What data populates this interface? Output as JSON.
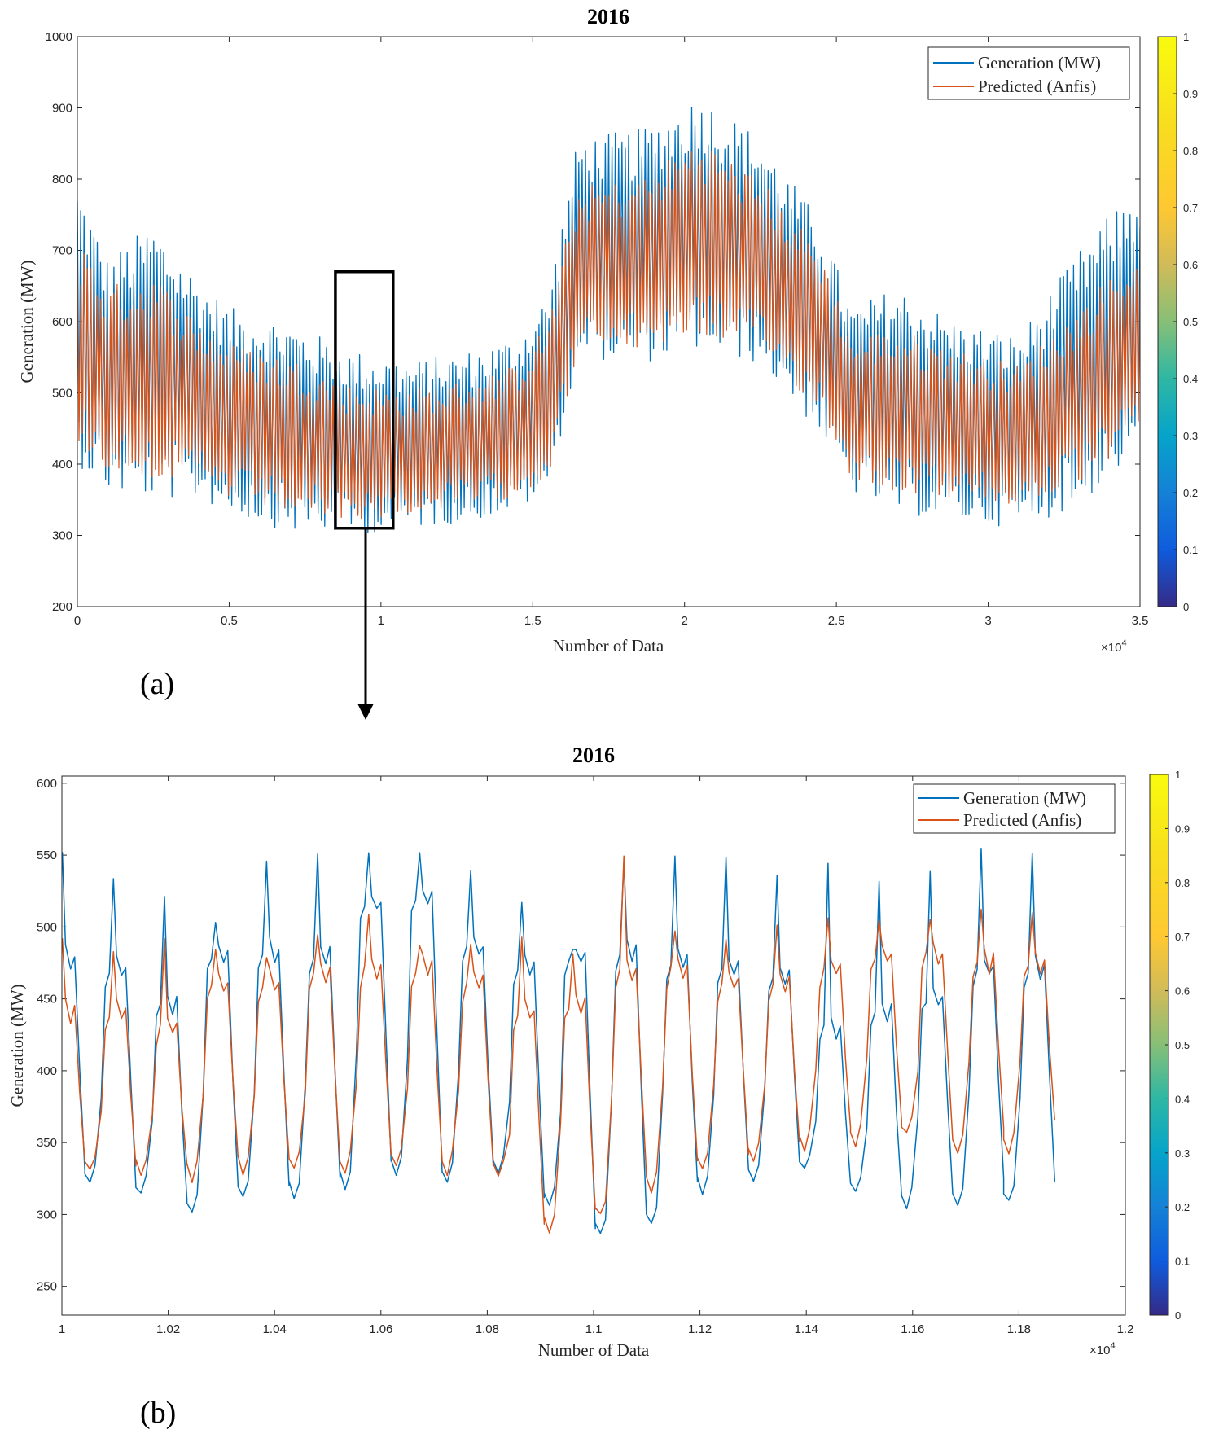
{
  "chart_data": [
    {
      "id": "a",
      "type": "line",
      "title": "2016",
      "panel_label": "(a)",
      "xlabel": "Number of Data",
      "ylabel": "Generation (MW)",
      "x_exponent": "×10",
      "x_exponent_power": "4",
      "xlim": [
        0,
        3.5
      ],
      "ylim": [
        200,
        1000
      ],
      "xticks": [
        0,
        0.5,
        1,
        1.5,
        2,
        2.5,
        3,
        3.5
      ],
      "xtick_labels": [
        "0",
        "0.5",
        "1",
        "1.5",
        "2",
        "2.5",
        "3",
        "3.5"
      ],
      "yticks": [
        200,
        300,
        400,
        500,
        600,
        700,
        800,
        900,
        1000
      ],
      "ytick_labels": [
        "200",
        "300",
        "400",
        "500",
        "600",
        "700",
        "800",
        "900",
        "1000"
      ],
      "zoom_box": {
        "x_range": [
          0.85,
          1.04
        ],
        "y_range": [
          310,
          670
        ]
      },
      "envelope_x": [
        0,
        0.1,
        0.25,
        0.4,
        0.5,
        0.7,
        0.9,
        1.1,
        1.3,
        1.45,
        1.55,
        1.65,
        1.85,
        2.05,
        2.25,
        2.45,
        2.55,
        2.7,
        2.9,
        3.1,
        3.3,
        3.5
      ],
      "series": [
        {
          "name": "Generation (MW)",
          "color": "#0072BD",
          "upper": [
            800,
            690,
            740,
            660,
            620,
            600,
            560,
            545,
            560,
            580,
            640,
            860,
            870,
            920,
            860,
            740,
            620,
            650,
            600,
            580,
            700,
            800
          ],
          "lower": [
            400,
            360,
            350,
            350,
            330,
            305,
            300,
            310,
            320,
            335,
            360,
            550,
            540,
            560,
            540,
            440,
            360,
            330,
            320,
            310,
            340,
            420
          ]
        },
        {
          "name": "Predicted (Anfis)",
          "color": "#D95319",
          "upper": [
            720,
            650,
            670,
            600,
            570,
            550,
            510,
            505,
            520,
            540,
            600,
            790,
            800,
            860,
            800,
            700,
            580,
            590,
            560,
            540,
            620,
            710
          ],
          "lower": [
            430,
            390,
            380,
            370,
            350,
            330,
            320,
            330,
            340,
            355,
            380,
            560,
            560,
            580,
            560,
            470,
            380,
            360,
            350,
            340,
            370,
            440
          ]
        }
      ],
      "colorbar": {
        "min": 0,
        "max": 1,
        "ticks": [
          "0",
          "0.1",
          "0.2",
          "0.3",
          "0.4",
          "0.5",
          "0.6",
          "0.7",
          "0.8",
          "0.9",
          "1"
        ]
      }
    },
    {
      "id": "b",
      "type": "line",
      "title": "2016",
      "panel_label": "(b)",
      "xlabel": "Number of Data",
      "ylabel": "Generation (MW)",
      "x_exponent": "×10",
      "x_exponent_power": "4",
      "xlim": [
        1.0,
        1.2
      ],
      "ylim": [
        230,
        605
      ],
      "xticks": [
        1,
        1.02,
        1.04,
        1.06,
        1.08,
        1.1,
        1.12,
        1.14,
        1.16,
        1.18,
        1.2
      ],
      "xtick_labels": [
        "1",
        "1.02",
        "1.04",
        "1.06",
        "1.08",
        "1.1",
        "1.12",
        "1.14",
        "1.16",
        "1.18",
        "1.2"
      ],
      "yticks": [
        250,
        300,
        350,
        400,
        450,
        500,
        550,
        600
      ],
      "ytick_labels": [
        "250",
        "300",
        "350",
        "400",
        "450",
        "500",
        "550",
        "600"
      ],
      "cycle_period": 0.0096,
      "cycle_start": 1.0,
      "series": [
        {
          "name": "Generation (MW)",
          "color": "#0072BD",
          "peaks": [
            553,
            531,
            520,
            502,
            545,
            548,
            552,
            550,
            540,
            518,
            482,
            543,
            548,
            548,
            535,
            543,
            532,
            537,
            552
          ],
          "plateaus": [
            478,
            470,
            445,
            480,
            482,
            480,
            515,
            520,
            485,
            470,
            478,
            482,
            475,
            470,
            465,
            430,
            440,
            450,
            470
          ],
          "troughs": [
            320,
            312,
            302,
            312,
            312,
            320,
            328,
            322,
            328,
            305,
            285,
            295,
            315,
            322,
            330,
            315,
            305,
            308,
            316
          ]
        },
        {
          "name": "Predicted (Anfis)",
          "color": "#D95319",
          "peaks": [
            493,
            485,
            493,
            482,
            480,
            495,
            508,
            485,
            490,
            495,
            480,
            548,
            500,
            490,
            502,
            505,
            507,
            505,
            510
          ],
          "plateaus": [
            440,
            440,
            430,
            460,
            460,
            465,
            470,
            470,
            460,
            440,
            445,
            470,
            470,
            460,
            460,
            470,
            480,
            480,
            475
          ],
          "troughs": [
            330,
            328,
            325,
            330,
            330,
            330,
            333,
            330,
            328,
            288,
            298,
            318,
            330,
            335,
            345,
            350,
            355,
            345,
            355
          ]
        }
      ],
      "colorbar": {
        "min": 0,
        "max": 1,
        "ticks": [
          "0",
          "0.1",
          "0.2",
          "0.3",
          "0.4",
          "0.5",
          "0.6",
          "0.7",
          "0.8",
          "0.9",
          "1"
        ]
      }
    }
  ]
}
